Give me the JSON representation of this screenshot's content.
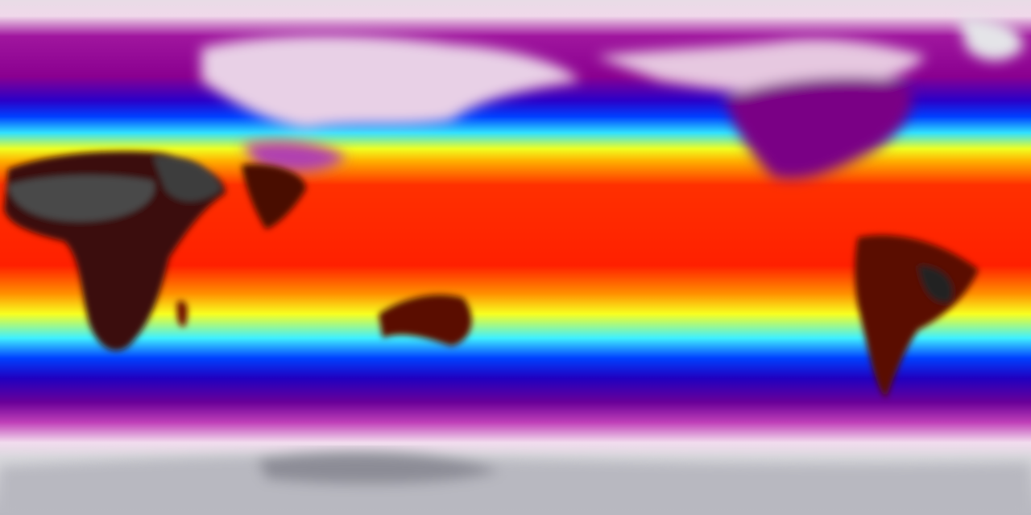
{
  "map": {
    "projection": "equirectangular",
    "colorscale": [
      "#c8c8cc",
      "#f2dcec",
      "#d24fc0",
      "#8a0090",
      "#2000d0",
      "#0050ff",
      "#30e0ff",
      "#f0ff20",
      "#ffa000",
      "#ff2000",
      "#b00000",
      "#301010",
      "#505050"
    ]
  }
}
